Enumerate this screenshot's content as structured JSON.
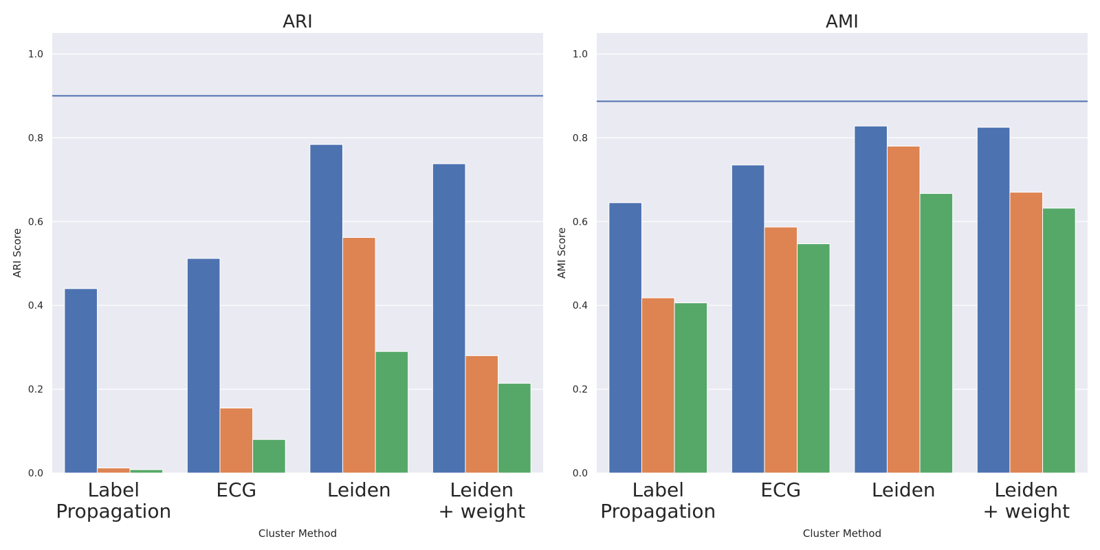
{
  "colors": {
    "background": "#eaeaf2",
    "grid": "#ffffff",
    "series": [
      "#4c72b0",
      "#dd8452",
      "#55a868"
    ],
    "reference_line": "#4c72b0"
  },
  "chart_data": [
    {
      "type": "bar",
      "title": "ARI",
      "xlabel": "Cluster Method",
      "ylabel": "ARI Score",
      "categories": [
        [
          "Label",
          "Propagation"
        ],
        [
          "ECG"
        ],
        [
          "Leiden"
        ],
        [
          "Leiden",
          "+ weight"
        ]
      ],
      "series": [
        {
          "values": [
            0.44,
            0.512,
            0.784,
            0.738
          ]
        },
        {
          "values": [
            0.012,
            0.155,
            0.562,
            0.28
          ]
        },
        {
          "values": [
            0.008,
            0.08,
            0.29,
            0.214
          ]
        }
      ],
      "reference_line": 0.9,
      "ylim": [
        0,
        1.05
      ],
      "yticks": [
        0.0,
        0.2,
        0.4,
        0.6,
        0.8,
        1.0
      ],
      "ytick_labels": [
        "0.0",
        "0.2",
        "0.4",
        "0.6",
        "0.8",
        "1.0"
      ],
      "grid": true,
      "legend": "none"
    },
    {
      "type": "bar",
      "title": "AMI",
      "xlabel": "Cluster Method",
      "ylabel": "AMI Score",
      "categories": [
        [
          "Label",
          "Propagation"
        ],
        [
          "ECG"
        ],
        [
          "Leiden"
        ],
        [
          "Leiden",
          "+ weight"
        ]
      ],
      "series": [
        {
          "values": [
            0.645,
            0.735,
            0.828,
            0.825
          ]
        },
        {
          "values": [
            0.418,
            0.587,
            0.78,
            0.67
          ]
        },
        {
          "values": [
            0.406,
            0.547,
            0.667,
            0.632
          ]
        }
      ],
      "reference_line": 0.887,
      "ylim": [
        0,
        1.05
      ],
      "yticks": [
        0.0,
        0.2,
        0.4,
        0.6,
        0.8,
        1.0
      ],
      "ytick_labels": [
        "0.0",
        "0.2",
        "0.4",
        "0.6",
        "0.8",
        "1.0"
      ],
      "grid": true,
      "legend": "none"
    }
  ]
}
